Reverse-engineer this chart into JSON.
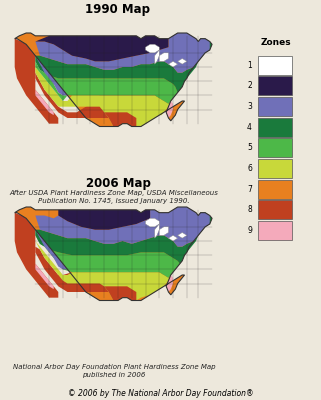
{
  "map1_title": "1990 Map",
  "map2_title": "2006 Map",
  "map1_caption": "After USDA Plant Hardiness Zone Map, USDA Miscellaneous\nPublication No. 1745, Issued January 1990.",
  "map2_caption": "National Arbor Day Foundation Plant Hardiness Zone Map\npublished in 2006",
  "copyright_text": "© 2006 by The National Arbor Day Foundation®",
  "legend_title": "Zones",
  "zones": [
    "1",
    "2",
    "3",
    "4",
    "5",
    "6",
    "7",
    "8",
    "9"
  ],
  "zone_colors": [
    "#FFFFFF",
    "#2A1A4A",
    "#7070B8",
    "#1A7A3C",
    "#4DB848",
    "#C8D83A",
    "#E88020",
    "#C04020",
    "#F4AABB"
  ],
  "bg_color": "#EDE8DC",
  "title_fontsize": 8.5,
  "caption_fontsize": 5.0,
  "legend_fontsize": 6.5,
  "copyright_fontsize": 5.5
}
